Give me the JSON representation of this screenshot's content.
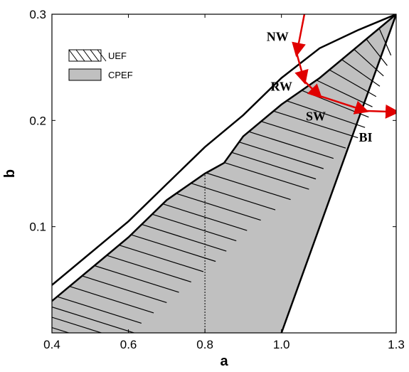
{
  "chart_data": {
    "type": "area",
    "xlabel": "a",
    "ylabel": "b",
    "xlim": [
      0.4,
      1.3
    ],
    "ylim": [
      0.0,
      0.3
    ],
    "xticks": [
      0.4,
      0.6,
      0.8,
      1.0,
      1.3
    ],
    "xtick_labels": [
      "0.4",
      "0.6",
      "0.8",
      "1.0",
      "1.3"
    ],
    "yticks": [
      0.1,
      0.2,
      0.3
    ],
    "ytick_labels": [
      "0.1",
      "0.2",
      "0.3"
    ],
    "grid": false,
    "legend_position": "top-left",
    "legend": [
      {
        "label": "UEF",
        "style": "hatched"
      },
      {
        "label": "CPEF",
        "style": "gray-fill"
      }
    ],
    "colors": {
      "cpef_fill": "#c0c0c0",
      "boundary": "#000000",
      "arrows": "#e00000"
    },
    "curves": {
      "upper_boundary": [
        [
          0.4,
          0.045
        ],
        [
          0.5,
          0.075
        ],
        [
          0.6,
          0.105
        ],
        [
          0.7,
          0.14
        ],
        [
          0.8,
          0.175
        ],
        [
          0.9,
          0.205
        ],
        [
          1.0,
          0.24
        ],
        [
          1.1,
          0.268
        ],
        [
          1.2,
          0.285
        ],
        [
          1.3,
          0.3
        ]
      ],
      "cpef_left_boundary": [
        [
          0.4,
          0.03
        ],
        [
          0.5,
          0.06
        ],
        [
          0.6,
          0.09
        ],
        [
          0.7,
          0.125
        ],
        [
          0.8,
          0.15
        ],
        [
          0.85,
          0.16
        ],
        [
          0.9,
          0.185
        ],
        [
          1.0,
          0.215
        ],
        [
          1.1,
          0.24
        ],
        [
          1.2,
          0.27
        ],
        [
          1.3,
          0.3
        ]
      ],
      "cpef_right_boundary": [
        [
          1.0,
          0.0
        ],
        [
          1.3,
          0.3
        ]
      ],
      "dotted_line": [
        [
          0.8,
          0.0
        ],
        [
          0.8,
          0.15
        ]
      ]
    },
    "annotations": [
      {
        "text": "NW",
        "x": 0.99,
        "y": 0.275
      },
      {
        "text": "RW",
        "x": 1.0,
        "y": 0.228
      },
      {
        "text": "SW",
        "x": 1.09,
        "y": 0.2
      },
      {
        "text": "BI",
        "x": 1.22,
        "y": 0.18
      }
    ],
    "arrows": [
      {
        "from": [
          1.06,
          0.3
        ],
        "to": [
          1.04,
          0.263
        ]
      },
      {
        "from": [
          1.04,
          0.263
        ],
        "to": [
          1.06,
          0.237
        ]
      },
      {
        "from": [
          1.06,
          0.237
        ],
        "to": [
          1.1,
          0.223
        ]
      },
      {
        "from": [
          1.1,
          0.223
        ],
        "to": [
          1.22,
          0.209
        ]
      },
      {
        "from": [
          1.22,
          0.209
        ],
        "to": [
          1.3,
          0.208
        ]
      }
    ]
  }
}
